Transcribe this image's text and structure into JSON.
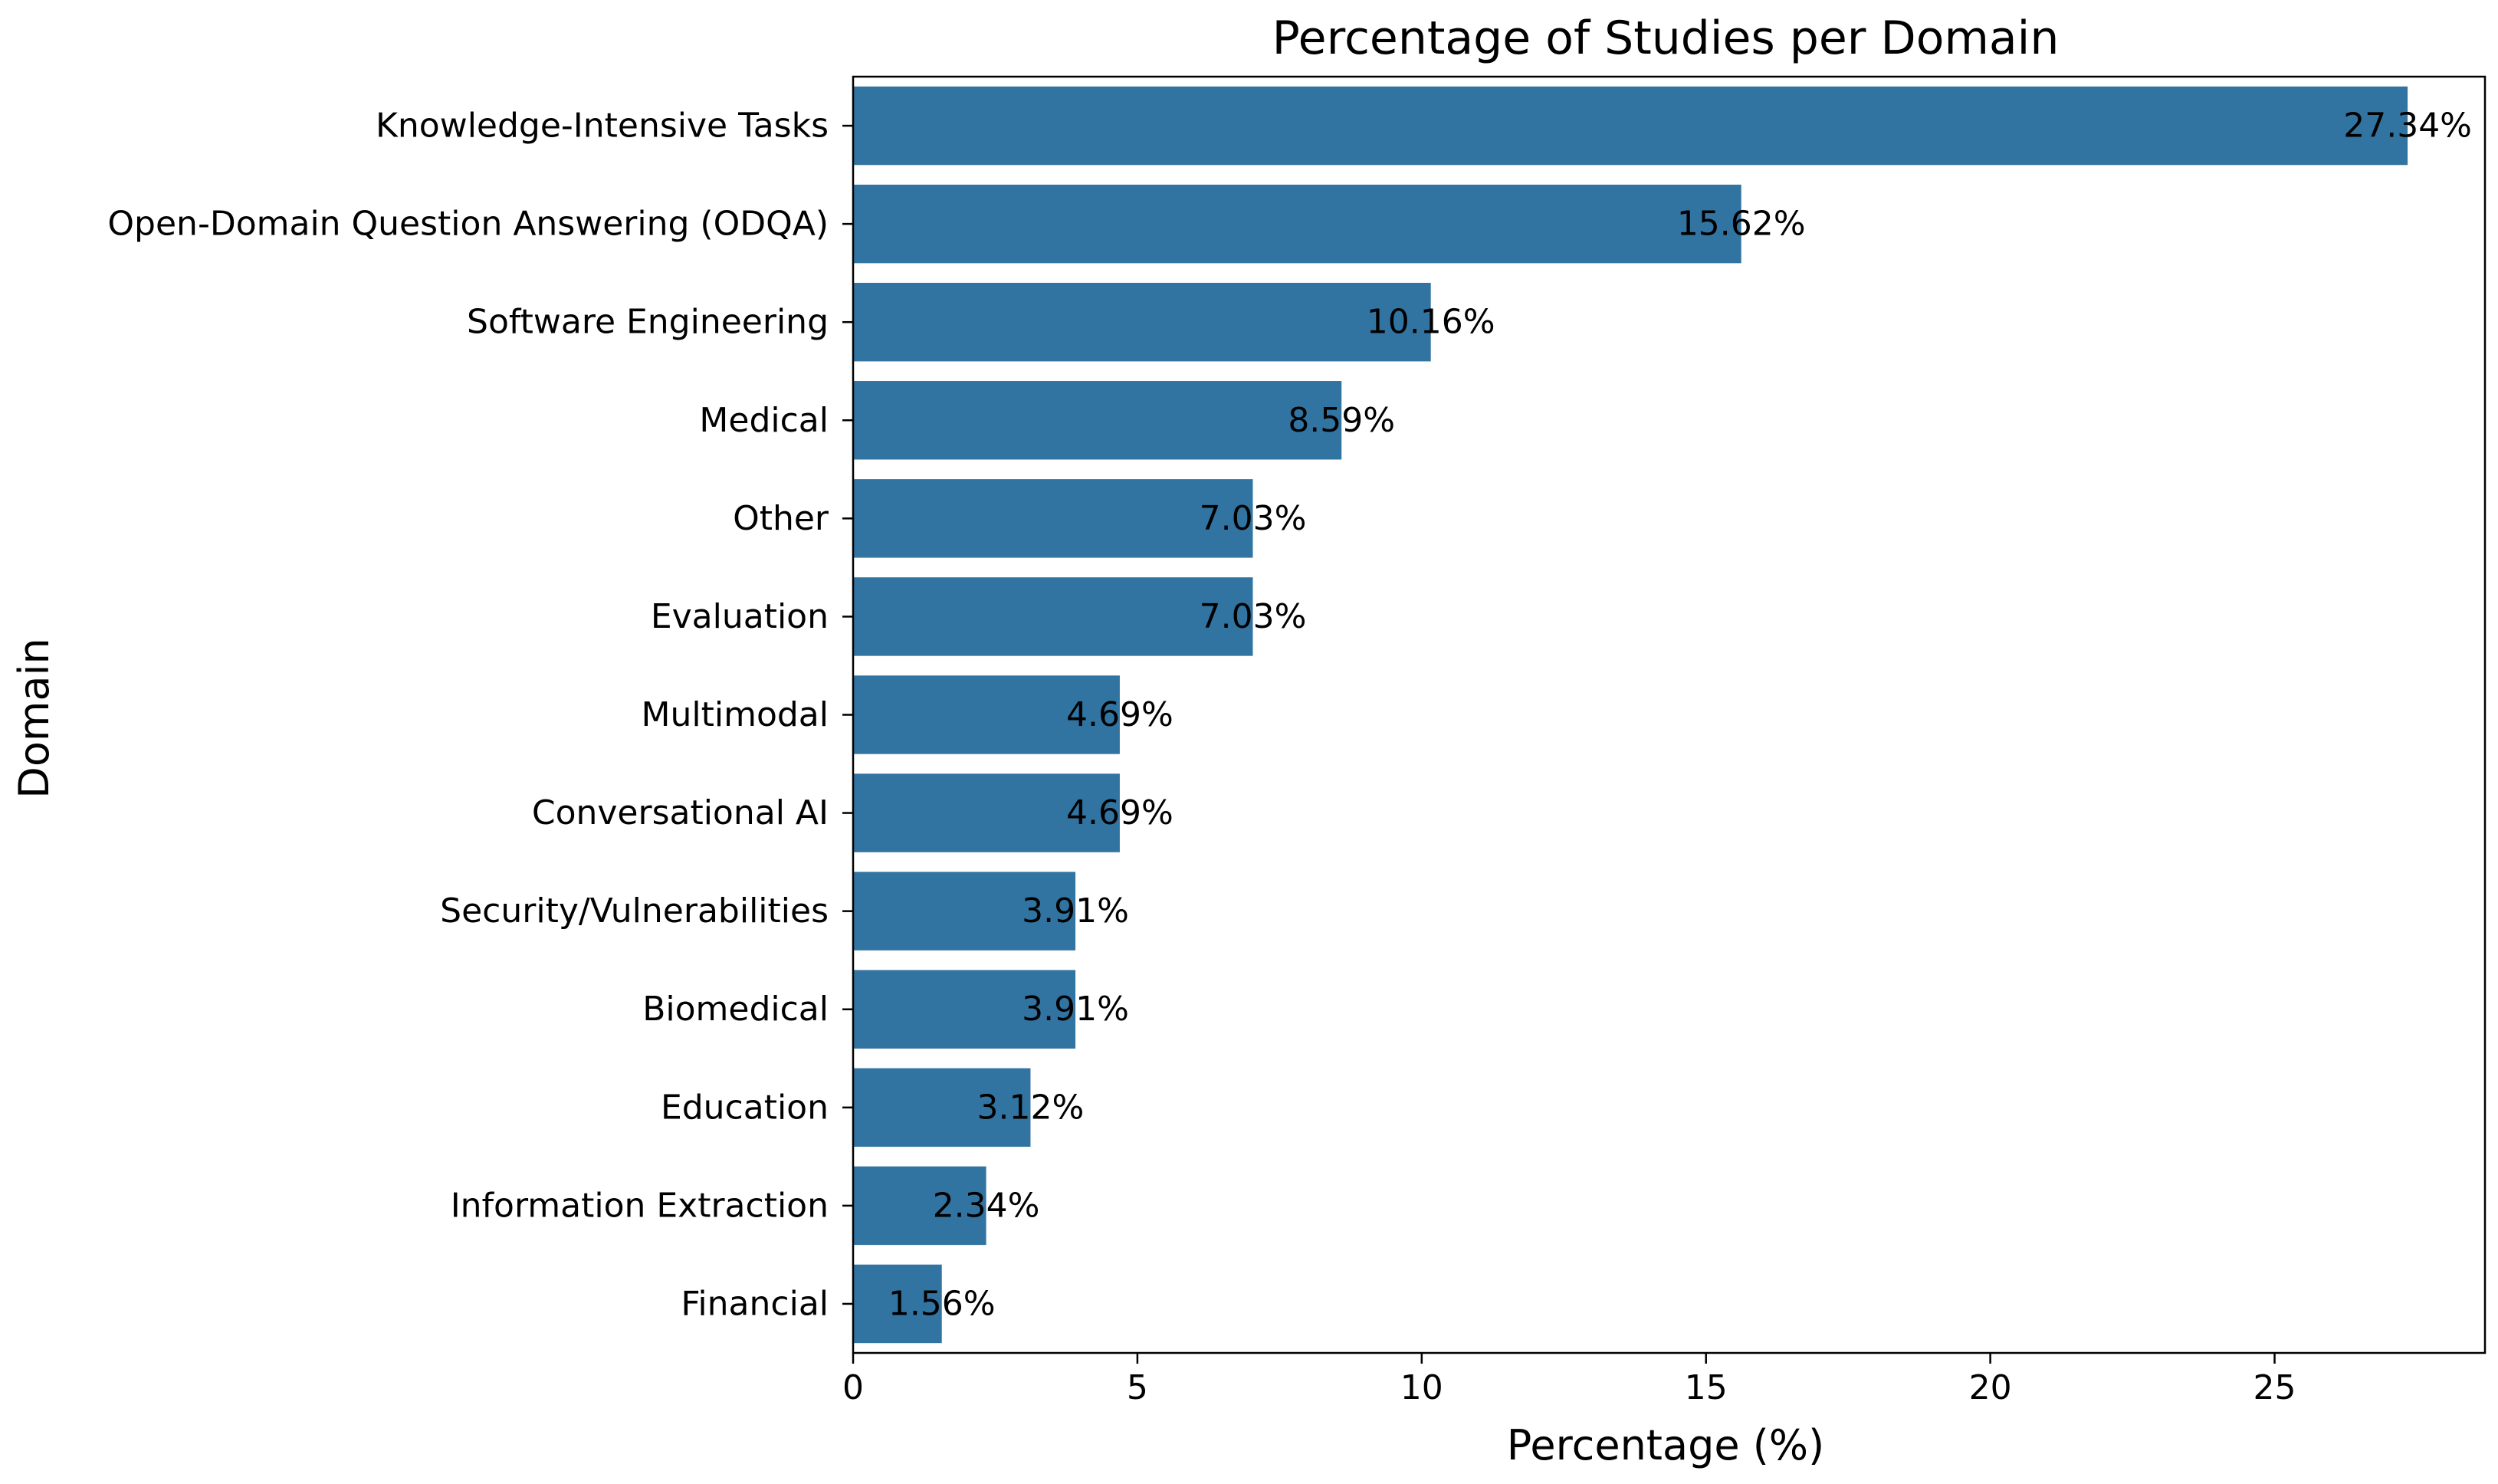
{
  "chart_data": {
    "type": "bar",
    "orientation": "horizontal",
    "title": "Percentage of Studies per Domain",
    "xlabel": "Percentage (%)",
    "ylabel": "Domain",
    "xlim": [
      0,
      28.7
    ],
    "xticks": [
      0,
      5,
      10,
      15,
      20,
      25
    ],
    "grid": false,
    "bar_color": "#3274a1",
    "categories": [
      "Knowledge-Intensive Tasks",
      "Open-Domain Question Answering (ODQA)",
      "Software Engineering",
      "Medical",
      "Other",
      "Evaluation",
      "Multimodal",
      "Conversational AI",
      "Security/Vulnerabilities",
      "Biomedical",
      "Education",
      "Information Extraction",
      "Financial"
    ],
    "values": [
      27.34,
      15.62,
      10.16,
      8.59,
      7.03,
      7.03,
      4.69,
      4.69,
      3.91,
      3.91,
      3.12,
      2.34,
      1.56
    ],
    "data_labels": [
      "27.34%",
      "15.62%",
      "10.16%",
      "8.59%",
      "7.03%",
      "7.03%",
      "4.69%",
      "4.69%",
      "3.91%",
      "3.91%",
      "3.12%",
      "2.34%",
      "1.56%"
    ]
  }
}
